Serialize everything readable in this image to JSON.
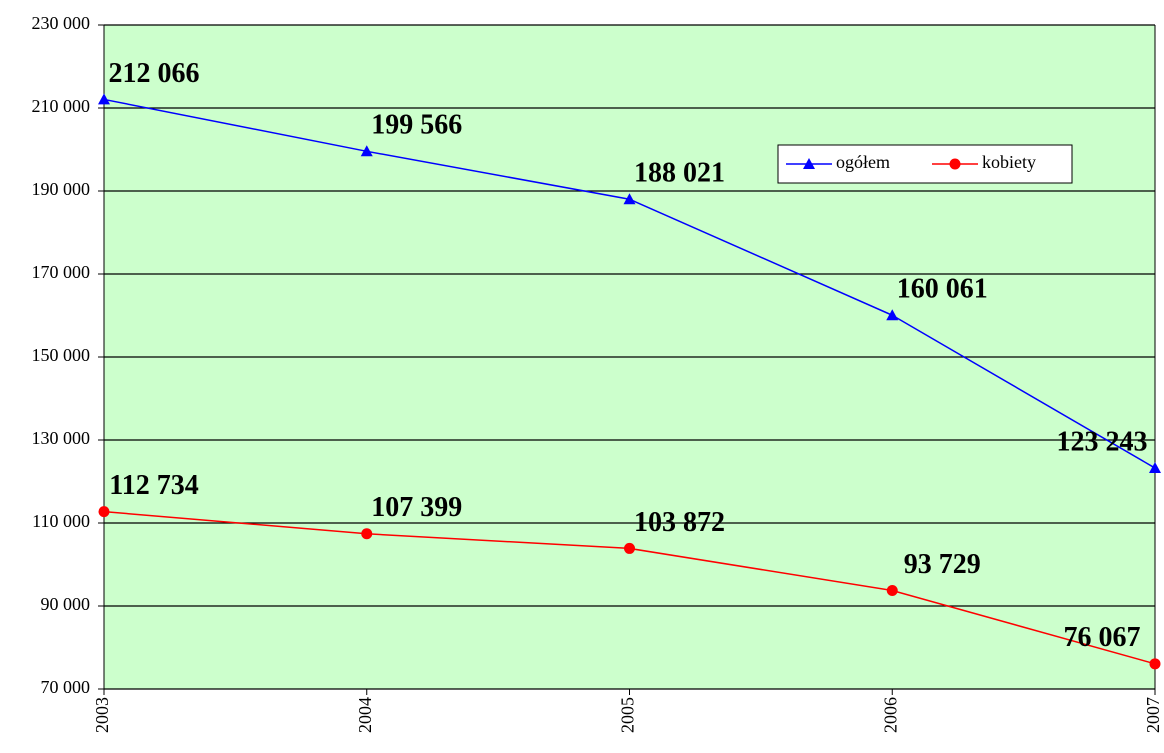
{
  "chart_data": {
    "type": "line",
    "categories": [
      "2003",
      "2004",
      "2005",
      "2006",
      "2007"
    ],
    "series": [
      {
        "name": "ogółem",
        "color": "#0000ff",
        "marker": "triangle",
        "values": [
          212066,
          199566,
          188021,
          160061,
          123243
        ],
        "value_labels": [
          "212 066",
          "199 566",
          "188 021",
          "160 061",
          "123 243"
        ]
      },
      {
        "name": "kobiety",
        "color": "#ff0000",
        "marker": "circle",
        "values": [
          112734,
          107399,
          103872,
          93729,
          76067
        ],
        "value_labels": [
          "112 734",
          "107 399",
          "103 872",
          "93 729",
          "76 067"
        ]
      }
    ],
    "ylim": [
      70000,
      230000
    ],
    "yticks": [
      {
        "value": 70000,
        "label": "70 000"
      },
      {
        "value": 90000,
        "label": "90 000"
      },
      {
        "value": 110000,
        "label": "110 000"
      },
      {
        "value": 130000,
        "label": "130 000"
      },
      {
        "value": 150000,
        "label": "150 000"
      },
      {
        "value": 170000,
        "label": "170 000"
      },
      {
        "value": 190000,
        "label": "190 000"
      },
      {
        "value": 210000,
        "label": "210 000"
      },
      {
        "value": 230000,
        "label": "230 000"
      }
    ],
    "grid": true,
    "background": "#ccffcc"
  }
}
